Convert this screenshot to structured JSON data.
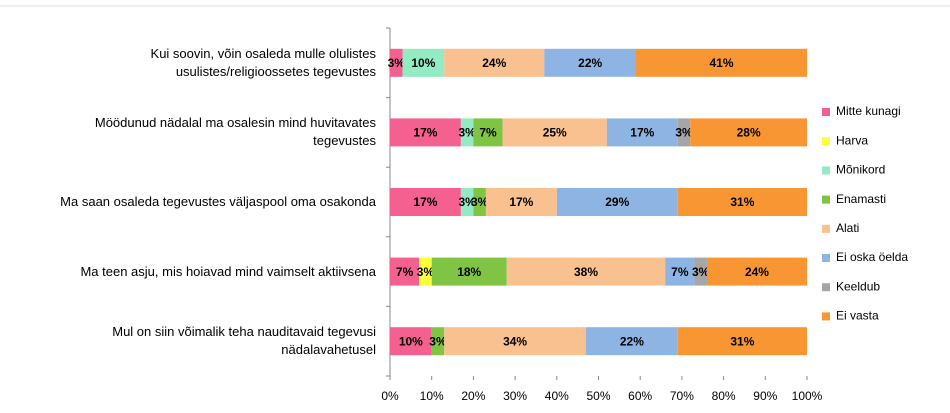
{
  "chart_data": {
    "type": "stacked-barh",
    "categories": [
      "Kui soovin, võin osaleda mulle olulistes\nusulistes/religioossetes tegevustes",
      "Möödunud nädalal ma osalesin mind huvitavates\ntegevustes",
      "Ma saan osaleda tegevustes väljaspool oma osakonda",
      "Ma teen asju, mis hoiavad mind vaimselt aktiivsena",
      "Mul on siin võimalik teha nauditavaid tegevusi\nnädalavahetusel"
    ],
    "series": [
      {
        "name": "Mitte kunagi",
        "color": "#f4608f",
        "values": [
          3,
          17,
          17,
          7,
          10
        ],
        "value_labels": [
          "3%",
          "17%",
          "17%",
          "7%",
          "10%"
        ]
      },
      {
        "name": "Harva",
        "color": "#ffff3c",
        "values": [
          0,
          0,
          0,
          3,
          0
        ],
        "value_labels": [
          null,
          null,
          null,
          "3%",
          null
        ]
      },
      {
        "name": "Mõnikord",
        "color": "#93ebc4",
        "values": [
          10,
          3,
          3,
          0,
          0
        ],
        "value_labels": [
          "10%",
          "3%",
          "3%",
          null,
          null
        ]
      },
      {
        "name": "Enamasti",
        "color": "#80c444",
        "values": [
          0,
          7,
          3,
          18,
          3
        ],
        "value_labels": [
          null,
          "7%",
          "3%",
          "18%",
          "3%"
        ]
      },
      {
        "name": "Alati",
        "color": "#f9c090",
        "values": [
          24,
          25,
          17,
          38,
          34
        ],
        "value_labels": [
          "24%",
          "25%",
          "17%",
          "38%",
          "34%"
        ]
      },
      {
        "name": "Ei oska öelda",
        "color": "#8eb4e3",
        "values": [
          22,
          17,
          29,
          7,
          22
        ],
        "value_labels": [
          "22%",
          "17%",
          "29%",
          "7%",
          "22%"
        ]
      },
      {
        "name": "Keeldub",
        "color": "#a6a6a6",
        "values": [
          0,
          3,
          0,
          3,
          0
        ],
        "value_labels": [
          null,
          "3%",
          null,
          "3%",
          null
        ]
      },
      {
        "name": "Ei vasta",
        "color": "#f79633",
        "values": [
          41,
          28,
          31,
          24,
          31
        ],
        "value_labels": [
          "41%",
          "28%",
          "31%",
          "24%",
          "31%"
        ]
      }
    ],
    "xlim": [
      0,
      100
    ],
    "xticks": [
      {
        "value": 0,
        "label": "0%"
      },
      {
        "value": 10,
        "label": "10%"
      },
      {
        "value": 20,
        "label": "20%"
      },
      {
        "value": 30,
        "label": "30%"
      },
      {
        "value": 40,
        "label": "40%"
      },
      {
        "value": 50,
        "label": "50%"
      },
      {
        "value": 60,
        "label": "60%"
      },
      {
        "value": 70,
        "label": "70%"
      },
      {
        "value": 80,
        "label": "80%"
      },
      {
        "value": 90,
        "label": "90%"
      },
      {
        "value": 100,
        "label": "100%"
      }
    ],
    "legend": "right"
  }
}
